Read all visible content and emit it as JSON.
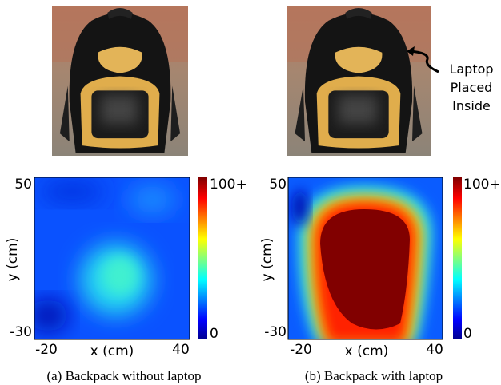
{
  "panels": [
    {
      "caption": "(a) Backpack without laptop",
      "heatmap": {
        "xlabel": "x (cm)",
        "ylabel": "y (cm)",
        "xticks": [
          -20,
          40
        ],
        "yticks": [
          50,
          -30
        ],
        "colorbar_ticks": [
          "100+",
          0
        ]
      }
    },
    {
      "caption": "(b) Backpack with laptop",
      "annotation": [
        "Laptop",
        "Placed",
        "Inside"
      ],
      "heatmap": {
        "xlabel": "x (cm)",
        "ylabel": "y (cm)",
        "xticks": [
          -20,
          40
        ],
        "yticks": [
          50,
          -30
        ],
        "colorbar_ticks": [
          "100+",
          0
        ]
      }
    }
  ]
}
